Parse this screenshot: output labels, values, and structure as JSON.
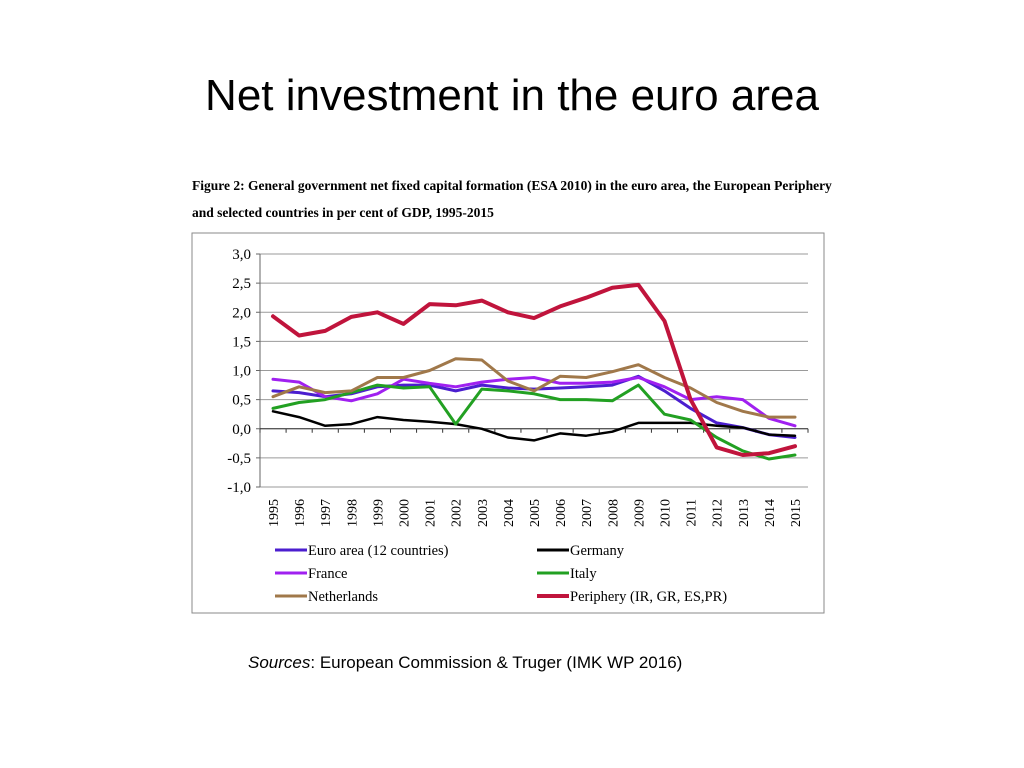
{
  "slide": {
    "title": "Net investment in the euro area",
    "sources_label": "Sources",
    "sources_text": ": European Commission & Truger (IMK WP 2016)"
  },
  "chart_data": {
    "type": "line",
    "title": "Figure 2: General government net fixed capital formation (ESA 2010) in the euro area, the European Periphery and selected countries in per cent of GDP, 1995-2015",
    "xlabel": "",
    "ylabel": "",
    "x": [
      "1995",
      "1996",
      "1997",
      "1998",
      "1999",
      "2000",
      "2001",
      "2002",
      "2003",
      "2004",
      "2005",
      "2006",
      "2007",
      "2008",
      "2009",
      "2010",
      "2011",
      "2012",
      "2013",
      "2014",
      "2015"
    ],
    "ylim": [
      -1.0,
      3.0
    ],
    "yticks": [
      "3,0",
      "2,5",
      "2,0",
      "1,5",
      "1,0",
      "0,5",
      "0,0",
      "-0,5",
      "-1,0"
    ],
    "grid": true,
    "legend_position": "bottom",
    "series": [
      {
        "name": "Euro area (12 countries)",
        "color": "#4b1ecf",
        "values": [
          0.65,
          0.62,
          0.55,
          0.6,
          0.72,
          0.75,
          0.75,
          0.65,
          0.75,
          0.7,
          0.68,
          0.7,
          0.72,
          0.75,
          0.9,
          0.65,
          0.35,
          0.1,
          0.02,
          -0.1,
          -0.15
        ]
      },
      {
        "name": "Germany",
        "color": "#000000",
        "values": [
          0.3,
          0.2,
          0.05,
          0.08,
          0.2,
          0.15,
          0.12,
          0.08,
          0.0,
          -0.15,
          -0.2,
          -0.08,
          -0.12,
          -0.05,
          0.1,
          0.1,
          0.1,
          0.05,
          0.02,
          -0.1,
          -0.12
        ]
      },
      {
        "name": "France",
        "color": "#a020f0",
        "values": [
          0.85,
          0.8,
          0.55,
          0.48,
          0.6,
          0.85,
          0.78,
          0.72,
          0.8,
          0.85,
          0.88,
          0.78,
          0.78,
          0.8,
          0.88,
          0.72,
          0.5,
          0.55,
          0.5,
          0.18,
          0.05
        ]
      },
      {
        "name": "Italy",
        "color": "#22a022",
        "values": [
          0.35,
          0.45,
          0.5,
          0.62,
          0.75,
          0.7,
          0.72,
          0.08,
          0.68,
          0.65,
          0.6,
          0.5,
          0.5,
          0.48,
          0.75,
          0.25,
          0.15,
          -0.15,
          -0.38,
          -0.52,
          -0.45
        ]
      },
      {
        "name": "Netherlands",
        "color": "#a0784a",
        "values": [
          0.55,
          0.72,
          0.62,
          0.65,
          0.88,
          0.88,
          1.0,
          1.2,
          1.18,
          0.82,
          0.65,
          0.9,
          0.88,
          0.98,
          1.1,
          0.88,
          0.7,
          0.45,
          0.3,
          0.2,
          0.2
        ]
      },
      {
        "name": "Periphery (IR, GR, ES,PR)",
        "color": "#c0143c",
        "values": [
          1.93,
          1.6,
          1.68,
          1.92,
          2.0,
          1.8,
          2.14,
          2.12,
          2.2,
          2.0,
          1.9,
          2.1,
          2.25,
          2.42,
          2.47,
          1.85,
          0.5,
          -0.32,
          -0.45,
          -0.42,
          -0.3
        ]
      }
    ]
  }
}
